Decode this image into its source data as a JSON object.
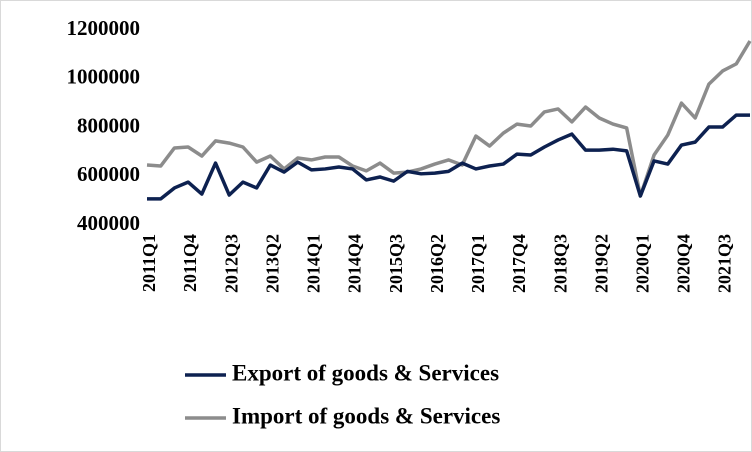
{
  "chart_data": {
    "type": "line",
    "categories": [
      "2011Q1",
      null,
      null,
      "2011Q4",
      null,
      null,
      "2012Q3",
      null,
      null,
      "2013Q2",
      null,
      null,
      "2014Q1",
      null,
      null,
      "2014Q4",
      null,
      null,
      "2015Q3",
      null,
      null,
      "2016Q2",
      null,
      null,
      "2017Q1",
      null,
      null,
      "2017Q4",
      null,
      null,
      "2018Q3",
      null,
      null,
      "2019Q2",
      null,
      null,
      "2020Q1",
      null,
      null,
      "2020Q4",
      null,
      null,
      "2021Q3",
      null,
      null
    ],
    "series": [
      {
        "name": "Export of goods & Services",
        "color": "#0d2150",
        "values": [
          507000,
          507000,
          552000,
          576000,
          527000,
          654000,
          523000,
          576000,
          552000,
          646000,
          617000,
          658000,
          626000,
          630000,
          638000,
          630000,
          585000,
          597000,
          580000,
          620000,
          610000,
          613000,
          620000,
          654000,
          630000,
          642000,
          650000,
          691000,
          687000,
          720000,
          749000,
          773000,
          707000,
          707000,
          711000,
          704000,
          519000,
          663000,
          650000,
          728000,
          740000,
          802000,
          802000,
          851000,
          851000
        ]
      },
      {
        "name": "Import of goods & Services",
        "color": "#8c8c8c",
        "values": [
          646000,
          642000,
          716000,
          720000,
          683000,
          745000,
          736000,
          720000,
          658000,
          683000,
          630000,
          675000,
          667000,
          679000,
          679000,
          642000,
          622000,
          654000,
          613000,
          617000,
          630000,
          650000,
          667000,
          646000,
          765000,
          724000,
          777000,
          814000,
          806000,
          864000,
          876000,
          823000,
          884000,
          839000,
          814000,
          798000,
          519000,
          687000,
          769000,
          900000,
          839000,
          978000,
          1032000,
          1061000,
          1155000
        ]
      }
    ],
    "ylim": [
      400000,
      1200000
    ],
    "yticks": [
      400000,
      600000,
      800000,
      1000000,
      1200000
    ],
    "grid": false
  }
}
